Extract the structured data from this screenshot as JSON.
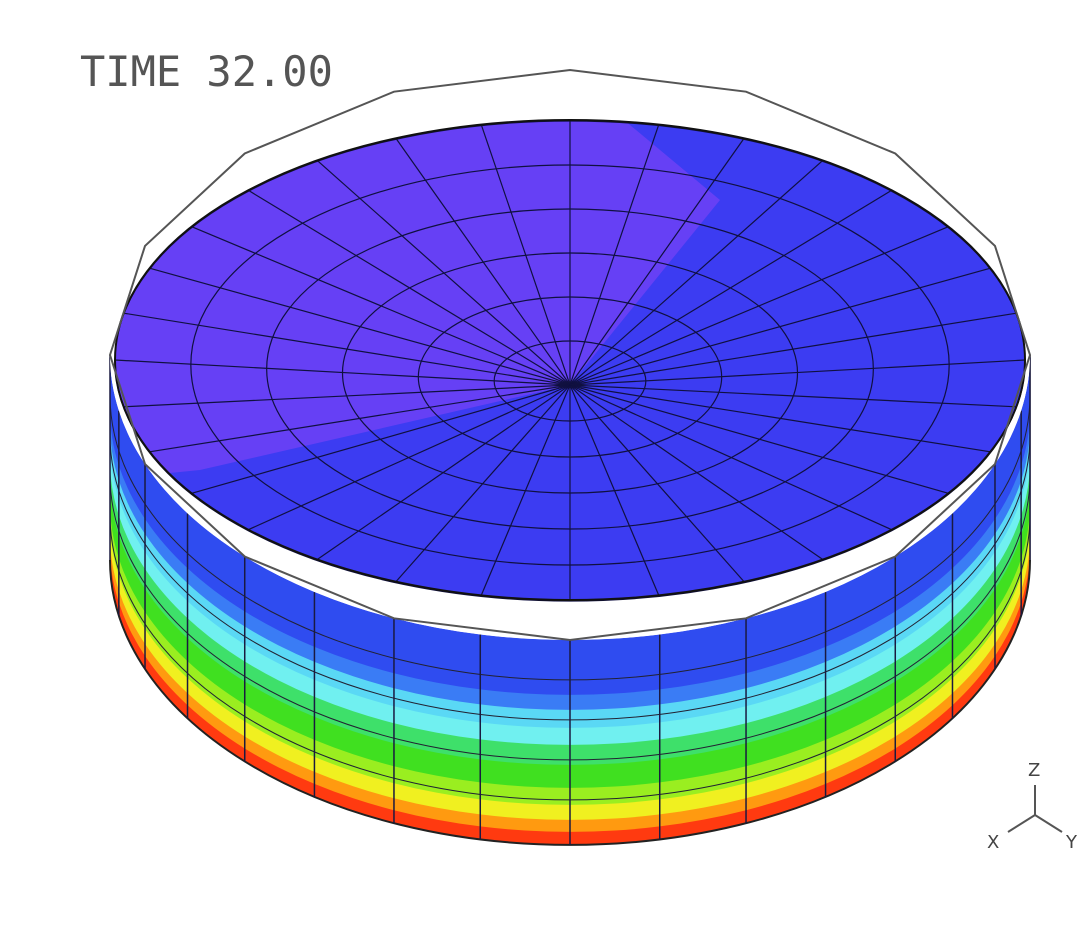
{
  "time_label": "TIME 32.00",
  "axes": {
    "z": "Z",
    "x": "X",
    "y": "Y"
  }
}
